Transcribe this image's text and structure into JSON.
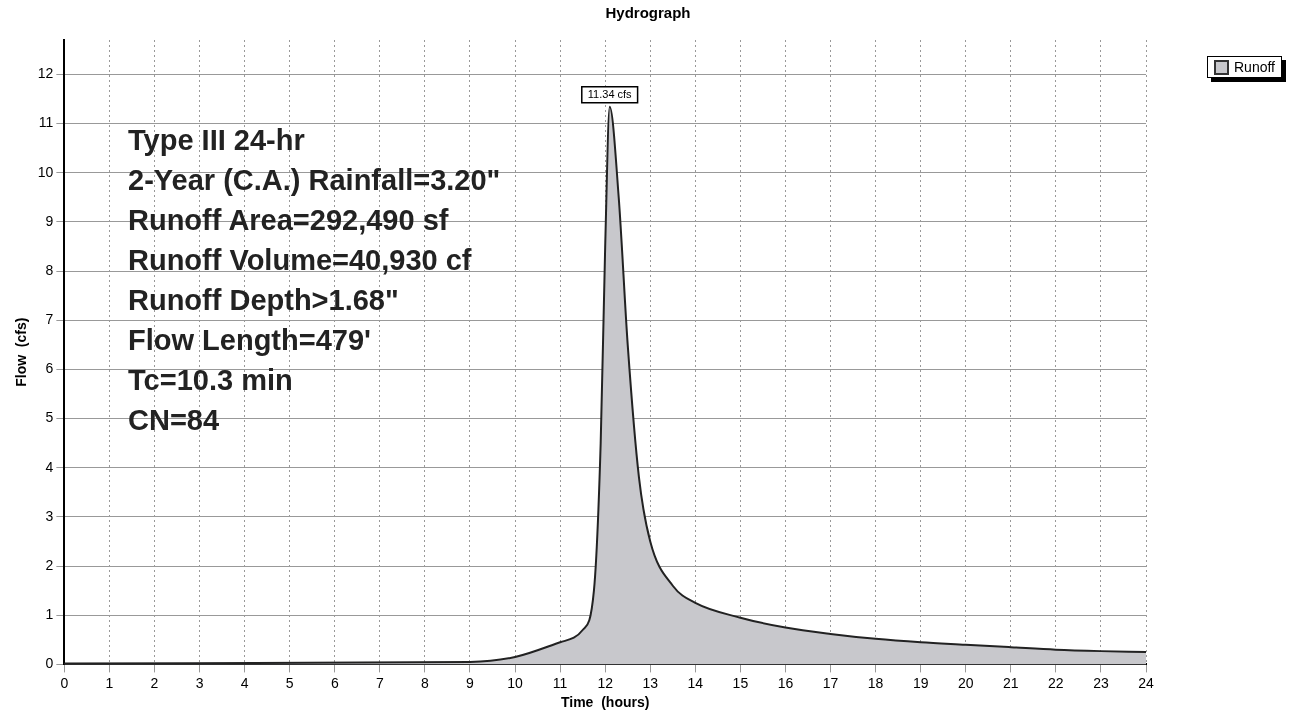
{
  "chart_data": {
    "type": "area",
    "title": "Hydrograph",
    "xlabel": "Time  (hours)",
    "ylabel": "Flow  (cfs)",
    "x": [
      0,
      9,
      10,
      11,
      11.5,
      11.75,
      11.9,
      12.0,
      12.1,
      12.3,
      12.5,
      12.75,
      13,
      13.5,
      14,
      15,
      16,
      17,
      18,
      19,
      20,
      21,
      22,
      23,
      24
    ],
    "series": [
      {
        "name": "Runoff",
        "color": "#c8c8cc",
        "values": [
          0.02,
          0.05,
          0.15,
          0.45,
          0.7,
          1.5,
          4.5,
          8.5,
          11.34,
          9.5,
          6.5,
          3.8,
          2.5,
          1.6,
          1.25,
          0.95,
          0.75,
          0.62,
          0.52,
          0.45,
          0.4,
          0.35,
          0.3,
          0.27,
          0.25
        ],
        "value_labels": [
          null,
          null,
          null,
          null,
          null,
          null,
          null,
          null,
          "11.34 cfs",
          null,
          null,
          null,
          null,
          null,
          null,
          null,
          null,
          null,
          null,
          null,
          null,
          null,
          null,
          null,
          null
        ]
      }
    ],
    "xlim": [
      0,
      24
    ],
    "xticks": [
      0,
      1,
      2,
      3,
      4,
      5,
      6,
      7,
      8,
      9,
      10,
      11,
      12,
      13,
      14,
      15,
      16,
      17,
      18,
      19,
      20,
      21,
      22,
      23,
      24
    ],
    "ylim": [
      0,
      12.7
    ],
    "yticks": [
      0,
      1,
      2,
      3,
      4,
      5,
      6,
      7,
      8,
      9,
      10,
      11,
      12
    ],
    "grid": true,
    "legend": "top right",
    "marker": "none",
    "line_style": "solid",
    "annotations": [
      "Type III 24-hr",
      "2-Year (C.A.) Rainfall=3.20\"",
      "Runoff Area=292,490 sf",
      "Runoff Volume=40,930 cf",
      "Runoff Depth>1.68\"",
      "Flow Length=479'",
      "Tc=10.3 min",
      "CN=84"
    ]
  }
}
